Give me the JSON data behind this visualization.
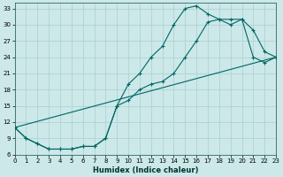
{
  "xlabel": "Humidex (Indice chaleur)",
  "ylabel": "",
  "bg_color": "#cce8e8",
  "grid_color": "#aacfcf",
  "line_color": "#006666",
  "xlim": [
    0,
    23
  ],
  "ylim": [
    6,
    34
  ],
  "yticks": [
    6,
    9,
    12,
    15,
    18,
    21,
    24,
    27,
    30,
    33
  ],
  "xticks": [
    0,
    1,
    2,
    3,
    4,
    5,
    6,
    7,
    8,
    9,
    10,
    11,
    12,
    13,
    14,
    15,
    16,
    17,
    18,
    19,
    20,
    21,
    22,
    23
  ],
  "curve1_x": [
    0,
    1,
    2,
    3,
    4,
    5,
    6,
    7,
    8,
    9,
    10,
    11,
    12,
    13,
    14,
    15,
    16,
    17,
    18,
    19,
    20,
    21,
    22,
    23
  ],
  "curve1_y": [
    11,
    9,
    8,
    7,
    7,
    7,
    7.5,
    7.5,
    9,
    15,
    19,
    21,
    24,
    26,
    30,
    33,
    33.5,
    32,
    31,
    31,
    31,
    29,
    25,
    24
  ],
  "curve2_x": [
    0,
    1,
    2,
    3,
    4,
    5,
    6,
    7,
    8,
    9,
    10,
    11,
    12,
    13,
    14,
    15,
    16,
    17,
    18,
    19,
    20,
    21,
    22,
    23
  ],
  "curve2_y": [
    11,
    9,
    8,
    7,
    7,
    7,
    7.5,
    7.5,
    9,
    15,
    16,
    18,
    19,
    19.5,
    21,
    24,
    27,
    30.5,
    31,
    30,
    31,
    24,
    23,
    24
  ],
  "line3_x": [
    0,
    23
  ],
  "line3_y": [
    11,
    24
  ]
}
